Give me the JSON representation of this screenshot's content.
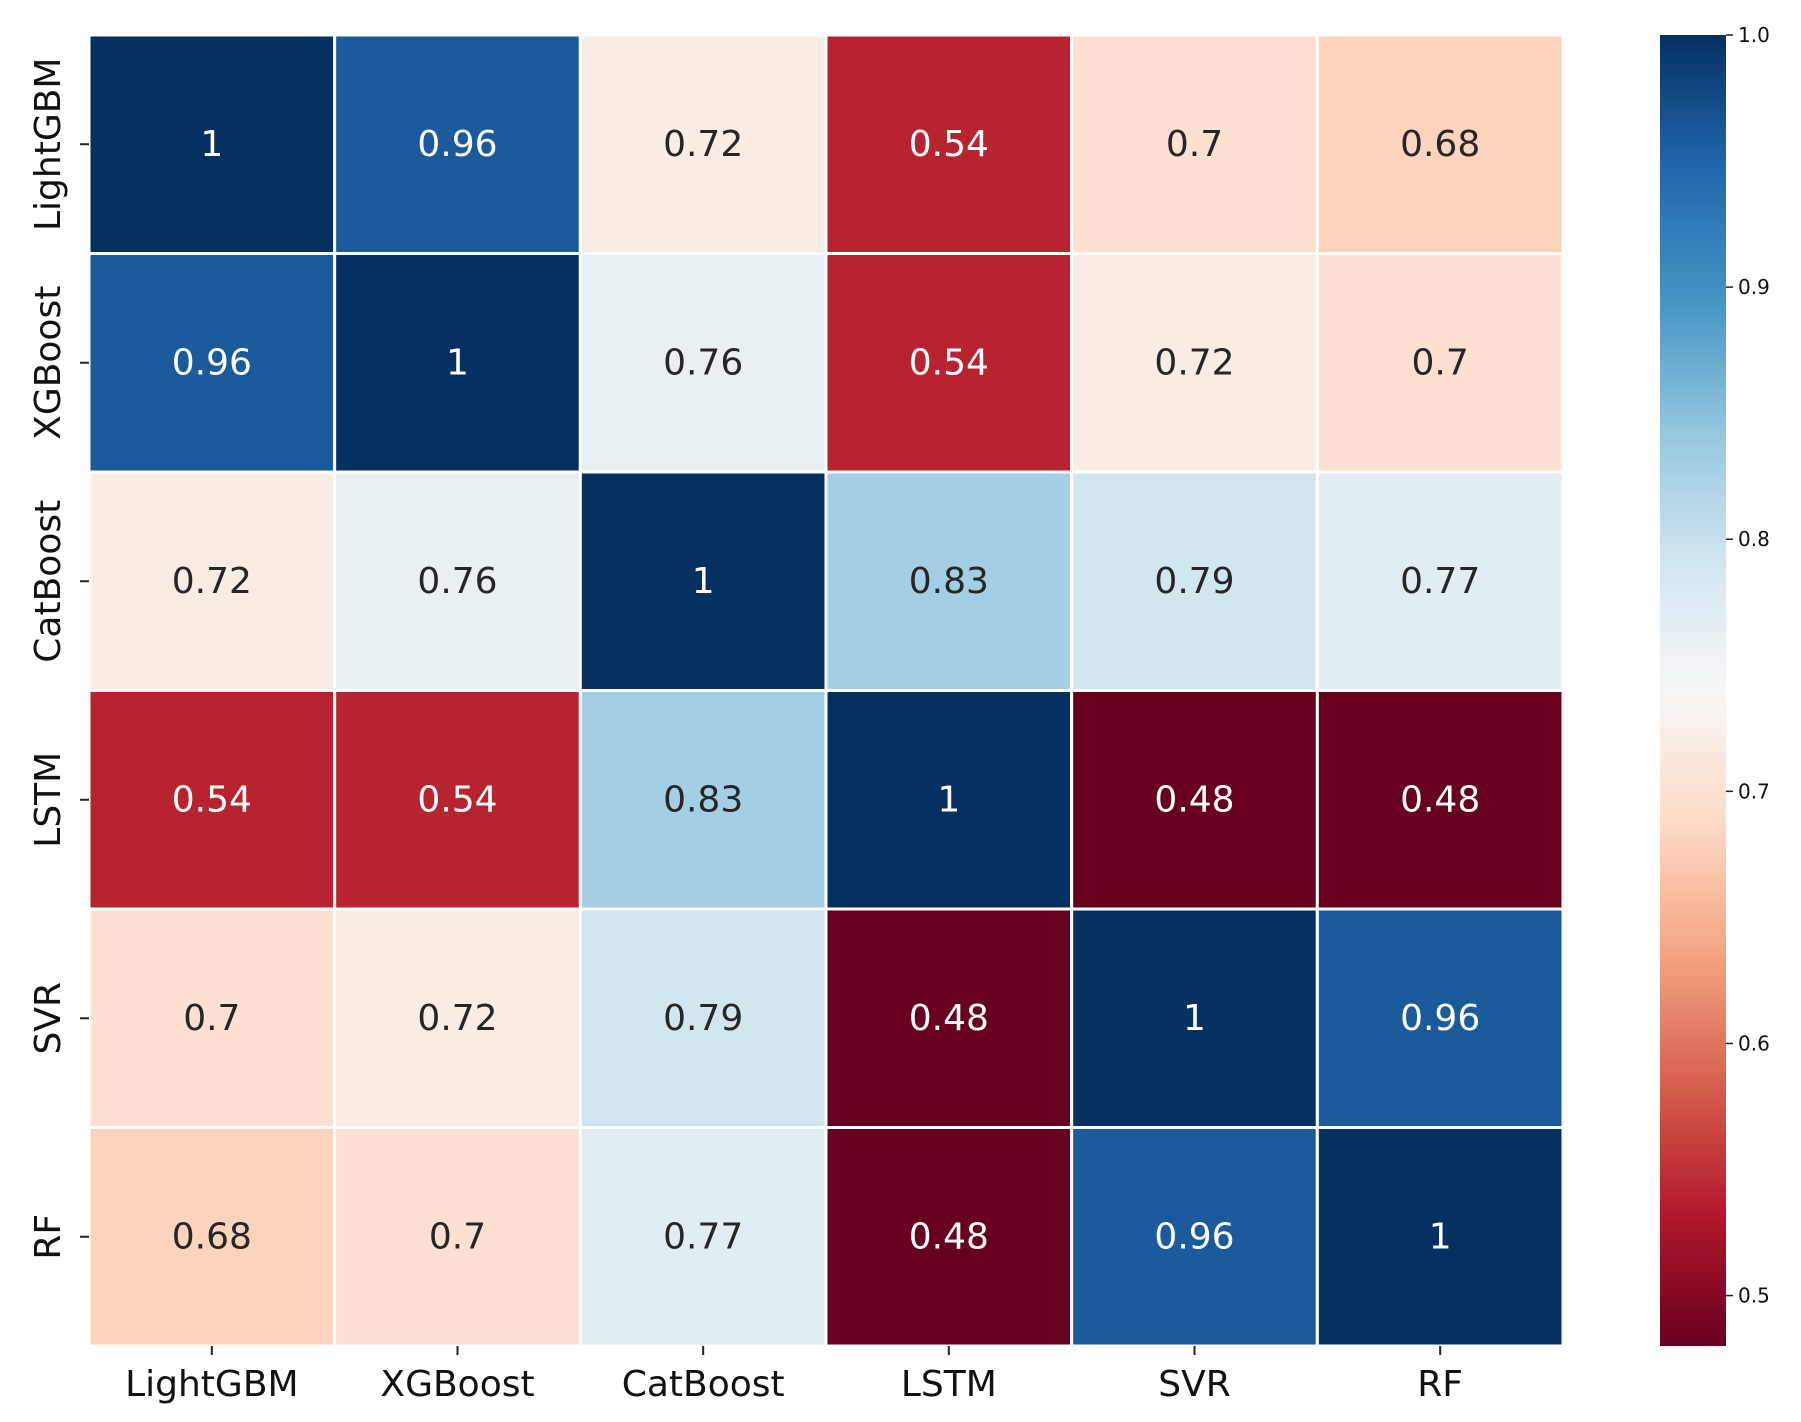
{
  "chart_data": {
    "type": "heatmap",
    "title": "",
    "xlabel": "",
    "ylabel": "",
    "x_categories": [
      "LightGBM",
      "XGBoost",
      "CatBoost",
      "LSTM",
      "SVR",
      "RF"
    ],
    "y_categories": [
      "LightGBM",
      "XGBoost",
      "CatBoost",
      "LSTM",
      "SVR",
      "RF"
    ],
    "values": [
      [
        1,
        0.96,
        0.72,
        0.54,
        0.7,
        0.68
      ],
      [
        0.96,
        1,
        0.76,
        0.54,
        0.72,
        0.7
      ],
      [
        0.72,
        0.76,
        1,
        0.83,
        0.79,
        0.77
      ],
      [
        0.54,
        0.54,
        0.83,
        1,
        0.48,
        0.48
      ],
      [
        0.7,
        0.72,
        0.79,
        0.48,
        1,
        0.96
      ],
      [
        0.68,
        0.7,
        0.77,
        0.48,
        0.96,
        1
      ]
    ],
    "annotations": [
      [
        "1",
        "0.96",
        "0.72",
        "0.54",
        "0.7",
        "0.68"
      ],
      [
        "0.96",
        "1",
        "0.76",
        "0.54",
        "0.72",
        "0.7"
      ],
      [
        "0.72",
        "0.76",
        "1",
        "0.83",
        "0.79",
        "0.77"
      ],
      [
        "0.54",
        "0.54",
        "0.83",
        "1",
        "0.48",
        "0.48"
      ],
      [
        "0.7",
        "0.72",
        "0.79",
        "0.48",
        "1",
        "0.96"
      ],
      [
        "0.68",
        "0.7",
        "0.77",
        "0.48",
        "0.96",
        "1"
      ]
    ],
    "colorbar": {
      "colormap": "RdBu",
      "vmin": 0.48,
      "vmax": 1.0,
      "ticks": [
        0.5,
        0.6,
        0.7,
        0.8,
        0.9,
        1.0
      ],
      "tick_labels": [
        "0.5",
        "0.6",
        "0.7",
        "0.8",
        "0.9",
        "1.0"
      ]
    },
    "colormap_stops": [
      "#67001f",
      "#b2182b",
      "#d6604d",
      "#f4a582",
      "#fddbc7",
      "#f7f7f7",
      "#d1e5f0",
      "#92c5de",
      "#4393c3",
      "#2166ac",
      "#053061"
    ],
    "grid_line_color": "#ffffff",
    "dark_text_color": "#262626",
    "light_text_color": "#ffffff"
  }
}
